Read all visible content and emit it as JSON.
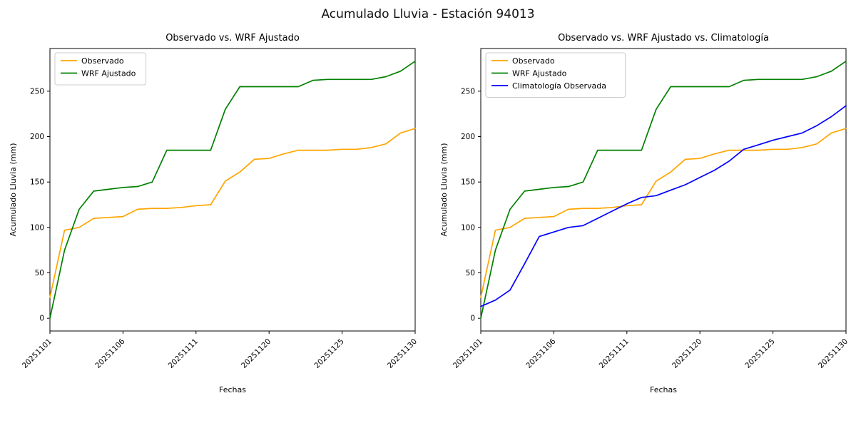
{
  "figure": {
    "title": "Acumulado Lluvia - Estación 94013"
  },
  "colors": {
    "observado": "#ffa500",
    "wrf_ajustado": "#008000",
    "climatologia": "#0000ff",
    "axis": "#000000",
    "legend_border": "#cccccc"
  },
  "chart_data": [
    {
      "type": "line",
      "title": "Observado vs. WRF Ajustado",
      "xlabel": "Fechas",
      "ylabel": "Acumulado Lluvia (mm)",
      "legend_position": "upper left",
      "x": [
        "20251101",
        "20251102",
        "20251103",
        "20251104",
        "20251105",
        "20251106",
        "20251107",
        "20251108",
        "20251109",
        "20251110",
        "20251111",
        "20251116",
        "20251117",
        "20251118",
        "20251119",
        "20251120",
        "20251121",
        "20251122",
        "20251123",
        "20251124",
        "20251125",
        "20251126",
        "20251127",
        "20251128",
        "20251129",
        "20251130"
      ],
      "xtick_indices": [
        0,
        5,
        10,
        15,
        20,
        25
      ],
      "xtick_labels": [
        "20251101",
        "20251106",
        "20251111",
        "20251120",
        "20251125",
        "20251130"
      ],
      "yticks": [
        0,
        50,
        100,
        150,
        200,
        250
      ],
      "ylim": [
        -14,
        297
      ],
      "series": [
        {
          "name": "Observado",
          "color": "#ffa500",
          "values": [
            23,
            97,
            100,
            110,
            111,
            112,
            120,
            121,
            121,
            122,
            124,
            125,
            151,
            161,
            175,
            176,
            181,
            185,
            185,
            185,
            186,
            186,
            188,
            192,
            204,
            209
          ]
        },
        {
          "name": "WRF Ajustado",
          "color": "#008000",
          "values": [
            0,
            75,
            120,
            140,
            142,
            144,
            145,
            150,
            185,
            185,
            185,
            185,
            230,
            255,
            255,
            255,
            255,
            255,
            262,
            263,
            263,
            263,
            263,
            266,
            272,
            283
          ]
        }
      ]
    },
    {
      "type": "line",
      "title": "Observado vs. WRF Ajustado vs. Climatología",
      "xlabel": "Fechas",
      "ylabel": "Acumulado Lluvia (mm)",
      "legend_position": "upper left",
      "x": [
        "20251101",
        "20251102",
        "20251103",
        "20251104",
        "20251105",
        "20251106",
        "20251107",
        "20251108",
        "20251109",
        "20251110",
        "20251111",
        "20251116",
        "20251117",
        "20251118",
        "20251119",
        "20251120",
        "20251121",
        "20251122",
        "20251123",
        "20251124",
        "20251125",
        "20251126",
        "20251127",
        "20251128",
        "20251129",
        "20251130"
      ],
      "xtick_indices": [
        0,
        5,
        10,
        15,
        20,
        25
      ],
      "xtick_labels": [
        "20251101",
        "20251106",
        "20251111",
        "20251120",
        "20251125",
        "20251130"
      ],
      "yticks": [
        0,
        50,
        100,
        150,
        200,
        250
      ],
      "ylim": [
        -14,
        297
      ],
      "series": [
        {
          "name": "Observado",
          "color": "#ffa500",
          "values": [
            23,
            97,
            100,
            110,
            111,
            112,
            120,
            121,
            121,
            122,
            124,
            125,
            151,
            161,
            175,
            176,
            181,
            185,
            185,
            185,
            186,
            186,
            188,
            192,
            204,
            209
          ]
        },
        {
          "name": "WRF Ajustado",
          "color": "#008000",
          "values": [
            0,
            75,
            120,
            140,
            142,
            144,
            145,
            150,
            185,
            185,
            185,
            185,
            230,
            255,
            255,
            255,
            255,
            255,
            262,
            263,
            263,
            263,
            263,
            266,
            272,
            283
          ]
        },
        {
          "name": "Climatología Observada",
          "color": "#0000ff",
          "values": [
            13,
            20,
            31,
            60,
            90,
            95,
            100,
            102,
            110,
            118,
            126,
            133,
            135,
            141,
            147,
            155,
            163,
            173,
            186,
            191,
            196,
            200,
            204,
            212,
            222,
            234
          ]
        }
      ]
    }
  ]
}
